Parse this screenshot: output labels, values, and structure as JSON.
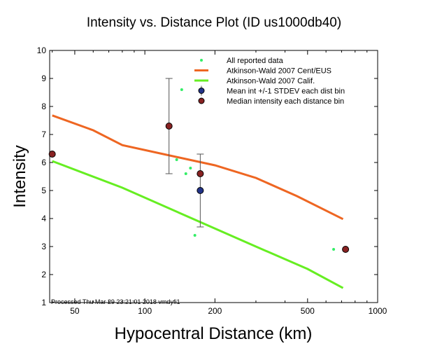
{
  "chart_data": {
    "type": "scatter",
    "title": "Intensity vs. Distance Plot (ID us1000db40)",
    "xlabel": "Hypocentral Distance (km)",
    "ylabel": "Intensity",
    "xscale": "log",
    "xlim": [
      39,
      1000
    ],
    "ylim": [
      1,
      10
    ],
    "xticks": [
      50,
      100,
      200,
      500,
      1000
    ],
    "xtick_labels": [
      "50",
      "100",
      "200",
      "500",
      "1000"
    ],
    "yticks": [
      1,
      2,
      3,
      4,
      5,
      6,
      7,
      8,
      9,
      10
    ],
    "ytick_labels": [
      "1",
      "2",
      "3",
      "4",
      "5",
      "6",
      "7",
      "8",
      "9",
      "10"
    ],
    "grid": false,
    "legend_position": "top-right",
    "annotation": "Processed Thu Mar 29 23:21:01 2018 vmdyfi1",
    "series": [
      {
        "name": "All reported data",
        "kind": "points",
        "color": "#33ee66",
        "x": [
          144,
          137,
          150,
          157,
          164,
          647
        ],
        "y": [
          8.6,
          6.1,
          5.6,
          5.8,
          3.4,
          2.9
        ]
      },
      {
        "name": "Atkinson-Wald 2007 Cent/EUS",
        "kind": "line",
        "color": "#ee6622",
        "x": [
          40,
          60,
          80,
          120,
          200,
          300,
          450,
          710
        ],
        "y": [
          7.68,
          7.15,
          6.62,
          6.3,
          5.9,
          5.45,
          4.8,
          3.98
        ]
      },
      {
        "name": "Atkinson-Wald 2007 Calif.",
        "kind": "line",
        "color": "#66ee22",
        "x": [
          40,
          80,
          150,
          300,
          500,
          710
        ],
        "y": [
          6.05,
          5.1,
          4.1,
          3.0,
          2.2,
          1.52
        ]
      },
      {
        "name": "Mean int +/-1 STDEV each dist bin",
        "kind": "errorbar-points",
        "color": "#223388",
        "x": [
          173
        ],
        "y": [
          5.0
        ],
        "err_low": [
          3.7
        ],
        "err_high": [
          6.3
        ]
      },
      {
        "name": "Median intensity each distance bin",
        "kind": "points",
        "color": "#882222",
        "x": [
          40,
          127,
          173,
          728
        ],
        "y": [
          6.3,
          7.3,
          5.6,
          2.9
        ]
      }
    ],
    "error_bars": [
      {
        "x": 127,
        "low": 5.6,
        "high": 9.0
      },
      {
        "x": 173,
        "low": 3.7,
        "high": 6.3
      }
    ]
  }
}
